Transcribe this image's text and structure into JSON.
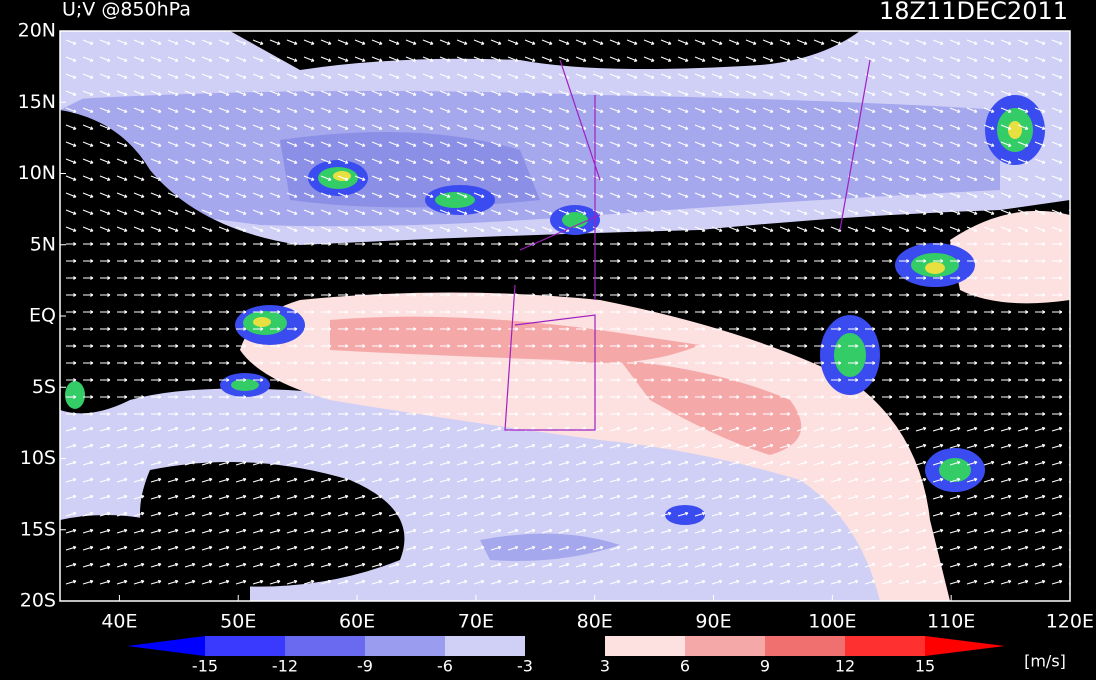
{
  "header": {
    "title": "U;V @850hPa",
    "time": "18Z11DEC2011"
  },
  "map": {
    "lat_labels": [
      "20N",
      "15N",
      "10N",
      "5N",
      "EQ",
      "5S",
      "10S",
      "15S",
      "20S"
    ],
    "lon_labels": [
      "40E",
      "50E",
      "60E",
      "70E",
      "80E",
      "90E",
      "100E",
      "110E",
      "120E"
    ]
  },
  "colorbar": {
    "labels": [
      "-15",
      "-12",
      "-9",
      "-6",
      "-3",
      "3",
      "6",
      "9",
      "12",
      "15"
    ],
    "unit": "[m/s]"
  }
}
